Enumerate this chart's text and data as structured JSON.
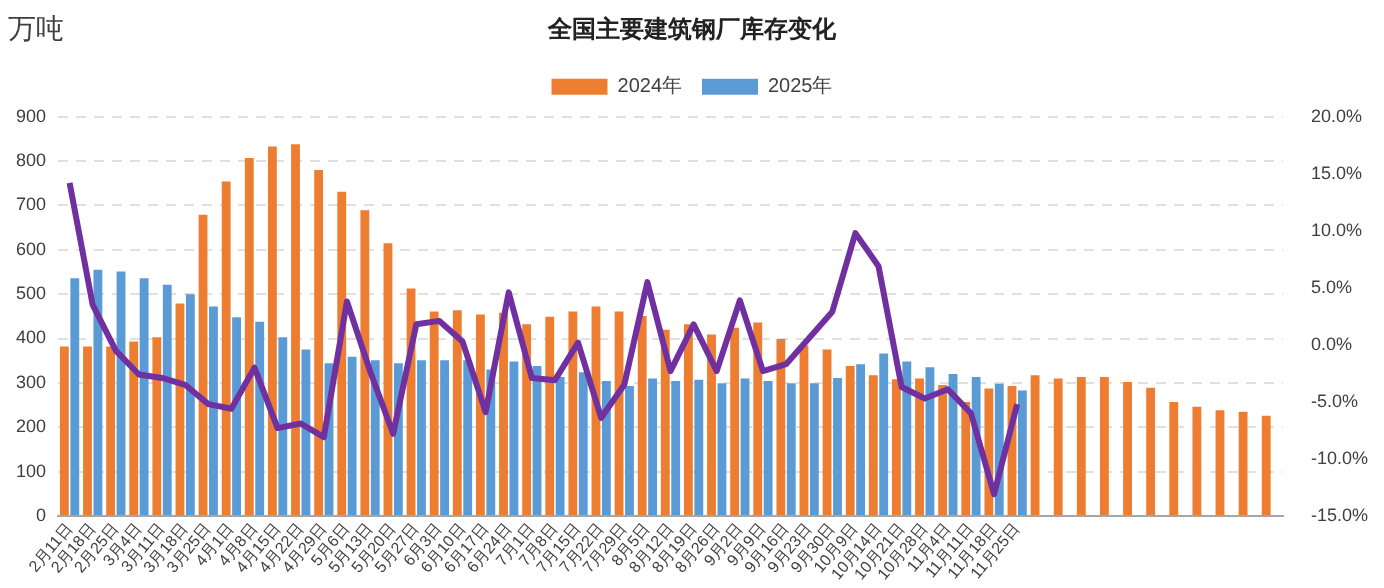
{
  "chart_data": {
    "type": "bar",
    "title": "全国主要建筑钢厂库存变化",
    "ylabel": "万吨",
    "categories": [
      "2月11日",
      "2月18日",
      "2月25日",
      "3月4日",
      "3月11日",
      "3月18日",
      "3月25日",
      "4月1日",
      "4月8日",
      "4月15日",
      "4月22日",
      "4月29日",
      "5月6日",
      "5月13日",
      "5月20日",
      "5月27日",
      "6月3日",
      "6月10日",
      "6月17日",
      "6月24日",
      "7月1日",
      "7月8日",
      "7月15日",
      "7月22日",
      "7月29日",
      "8月5日",
      "8月12日",
      "8月19日",
      "8月26日",
      "9月2日",
      "9月9日",
      "9月16日",
      "9月23日",
      "9月30日",
      "10月9日",
      "10月14日",
      "10月21日",
      "10月28日",
      "11月4日",
      "11月11日",
      "11月18日",
      "11月25日",
      null,
      null,
      null,
      null,
      null,
      null,
      null,
      null,
      null,
      null,
      null
    ],
    "series": [
      {
        "name": "2024年",
        "color": "#ed7d31",
        "values": [
          382,
          382,
          382,
          393,
          403,
          479,
          679,
          754,
          807,
          833,
          838,
          780,
          731,
          689,
          615,
          513,
          461,
          464,
          454,
          458,
          432,
          449,
          461,
          472,
          461,
          451,
          420,
          432,
          409,
          424,
          436,
          399,
          384,
          375,
          338,
          317,
          308,
          310,
          295,
          257,
          287,
          293,
          317,
          310,
          313,
          313,
          302,
          289,
          257,
          246,
          238,
          235,
          226
        ]
      },
      {
        "name": "2025年",
        "color": "#5b9bd5",
        "values": [
          536,
          555,
          551,
          536,
          521,
          500,
          472,
          448,
          438,
          403,
          375,
          344,
          359,
          351,
          344,
          351,
          351,
          351,
          330,
          348,
          338,
          313,
          324,
          304,
          293,
          310,
          304,
          307,
          299,
          310,
          304,
          299,
          299,
          311,
          342,
          366,
          348,
          335,
          320,
          313,
          298,
          283,
          null,
          null,
          null,
          null,
          null,
          null,
          null,
          null,
          null,
          null,
          null
        ]
      },
      {
        "type": "line",
        "axis": "y2",
        "color": "#7030a0",
        "marker": "none",
        "values": [
          14.2,
          3.5,
          -0.5,
          -2.6,
          -2.9,
          -3.5,
          -5.2,
          -5.6,
          -2.0,
          -7.3,
          -6.9,
          -8.1,
          3.8,
          -2.3,
          -7.8,
          1.8,
          2.1,
          0.3,
          -5.9,
          4.6,
          -2.9,
          -3.1,
          0.2,
          -6.4,
          -3.5,
          5.5,
          -2.3,
          1.8,
          -2.3,
          3.9,
          -2.3,
          -1.7,
          0.6,
          2.9,
          9.8,
          6.9,
          -3.7,
          -4.7,
          -3.9,
          -6.0,
          -13.1,
          -5.2,
          null,
          null,
          null,
          null,
          null,
          null,
          null,
          null,
          null,
          null,
          null
        ]
      }
    ],
    "ylim": [
      0,
      900
    ],
    "yticks": [
      0,
      100,
      200,
      300,
      400,
      500,
      600,
      700,
      800,
      900
    ],
    "y2lim": [
      -15,
      20
    ],
    "y2ticks": [
      {
        "value": -15,
        "label": "-15.0%"
      },
      {
        "value": -10,
        "label": "-10.0%"
      },
      {
        "value": -5,
        "label": "-5.0%"
      },
      {
        "value": 0,
        "label": "0.0%"
      },
      {
        "value": 5,
        "label": "5.0%"
      },
      {
        "value": 10,
        "label": "10.0%"
      },
      {
        "value": 15,
        "label": "15.0%"
      },
      {
        "value": 20,
        "label": "20.0%"
      }
    ],
    "grid": "y",
    "legend": "top"
  }
}
